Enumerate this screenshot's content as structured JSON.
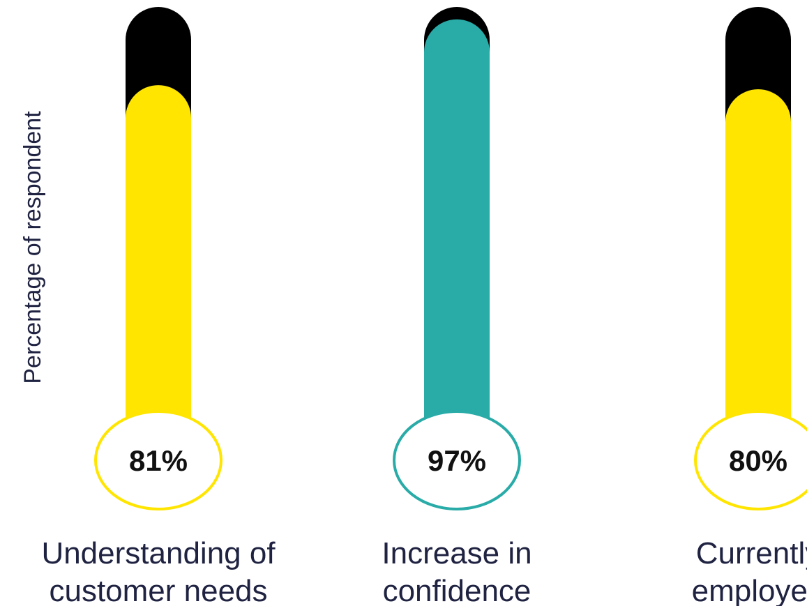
{
  "chart_data": {
    "type": "bar",
    "style": "thermometer",
    "ylabel": "Percentage of respondent",
    "ylim": [
      0,
      100
    ],
    "categories": [
      [
        "Understanding of",
        "customer needs"
      ],
      [
        "Increase in",
        "confidence"
      ],
      [
        "Currently",
        "employed"
      ]
    ],
    "values": [
      81,
      97,
      80
    ],
    "value_labels": [
      "81%",
      "97%",
      "80%"
    ],
    "colors": [
      "#FFE500",
      "#29ABA8",
      "#FFE500"
    ],
    "track_color": "#000000"
  }
}
